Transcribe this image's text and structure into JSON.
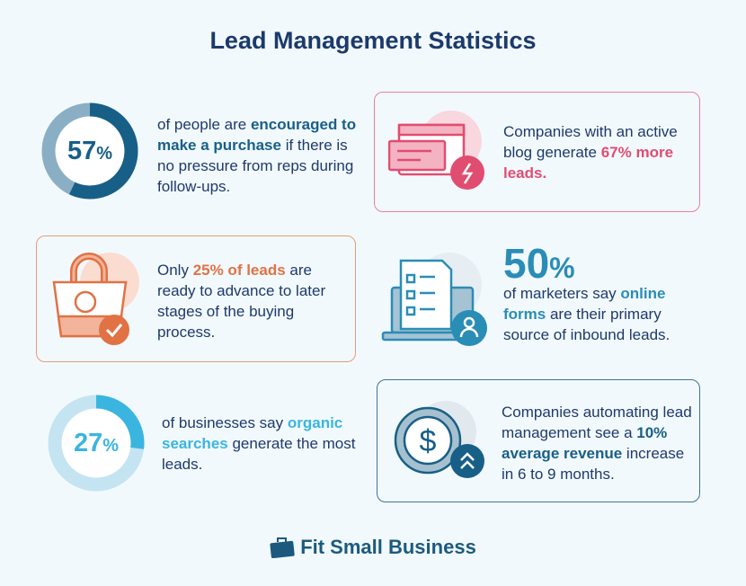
{
  "title": "Lead Management Statistics",
  "colors": {
    "background": "#f2f9fd",
    "navy": "#1e3a6a",
    "teal_dark": "#185f87",
    "pink": "#e14d70",
    "orange": "#e07244",
    "blue": "#2a8db5",
    "sky": "#3ab5e0"
  },
  "stats": [
    {
      "value": "57",
      "unit": "%",
      "percent": 57,
      "text_before": "of people are ",
      "highlight": "encouraged to make a purchase",
      "text_after": " if there is no pressure from reps during follow-ups.",
      "visual": "donut"
    },
    {
      "text_before": "Companies with an active blog generate ",
      "highlight": "67% more leads.",
      "text_after": "",
      "icon": "browser-window-lightning-icon"
    },
    {
      "text_before": "Only ",
      "highlight": "25% of leads",
      "text_after": " are ready to advance to later stages of the buying process.",
      "icon": "shopping-bag-check-icon"
    },
    {
      "value": "50",
      "unit": "%",
      "text_before": "of marketers say ",
      "highlight": "online forms",
      "text_after": " are their primary source of inbound leads.",
      "icon": "laptop-form-user-icon"
    },
    {
      "value": "27",
      "unit": "%",
      "percent": 27,
      "text_before": "of businesses say ",
      "highlight": "organic searches",
      "text_after": " generate the most leads.",
      "visual": "donut"
    },
    {
      "text_before": "Companies automating lead management see a ",
      "highlight": "10% average revenue",
      "text_after": " increase in 6 to 9 months.",
      "icon": "dollar-coin-arrow-up-icon"
    }
  ],
  "brand": {
    "name": "Fit Small Business",
    "icon": "briefcase-icon"
  }
}
